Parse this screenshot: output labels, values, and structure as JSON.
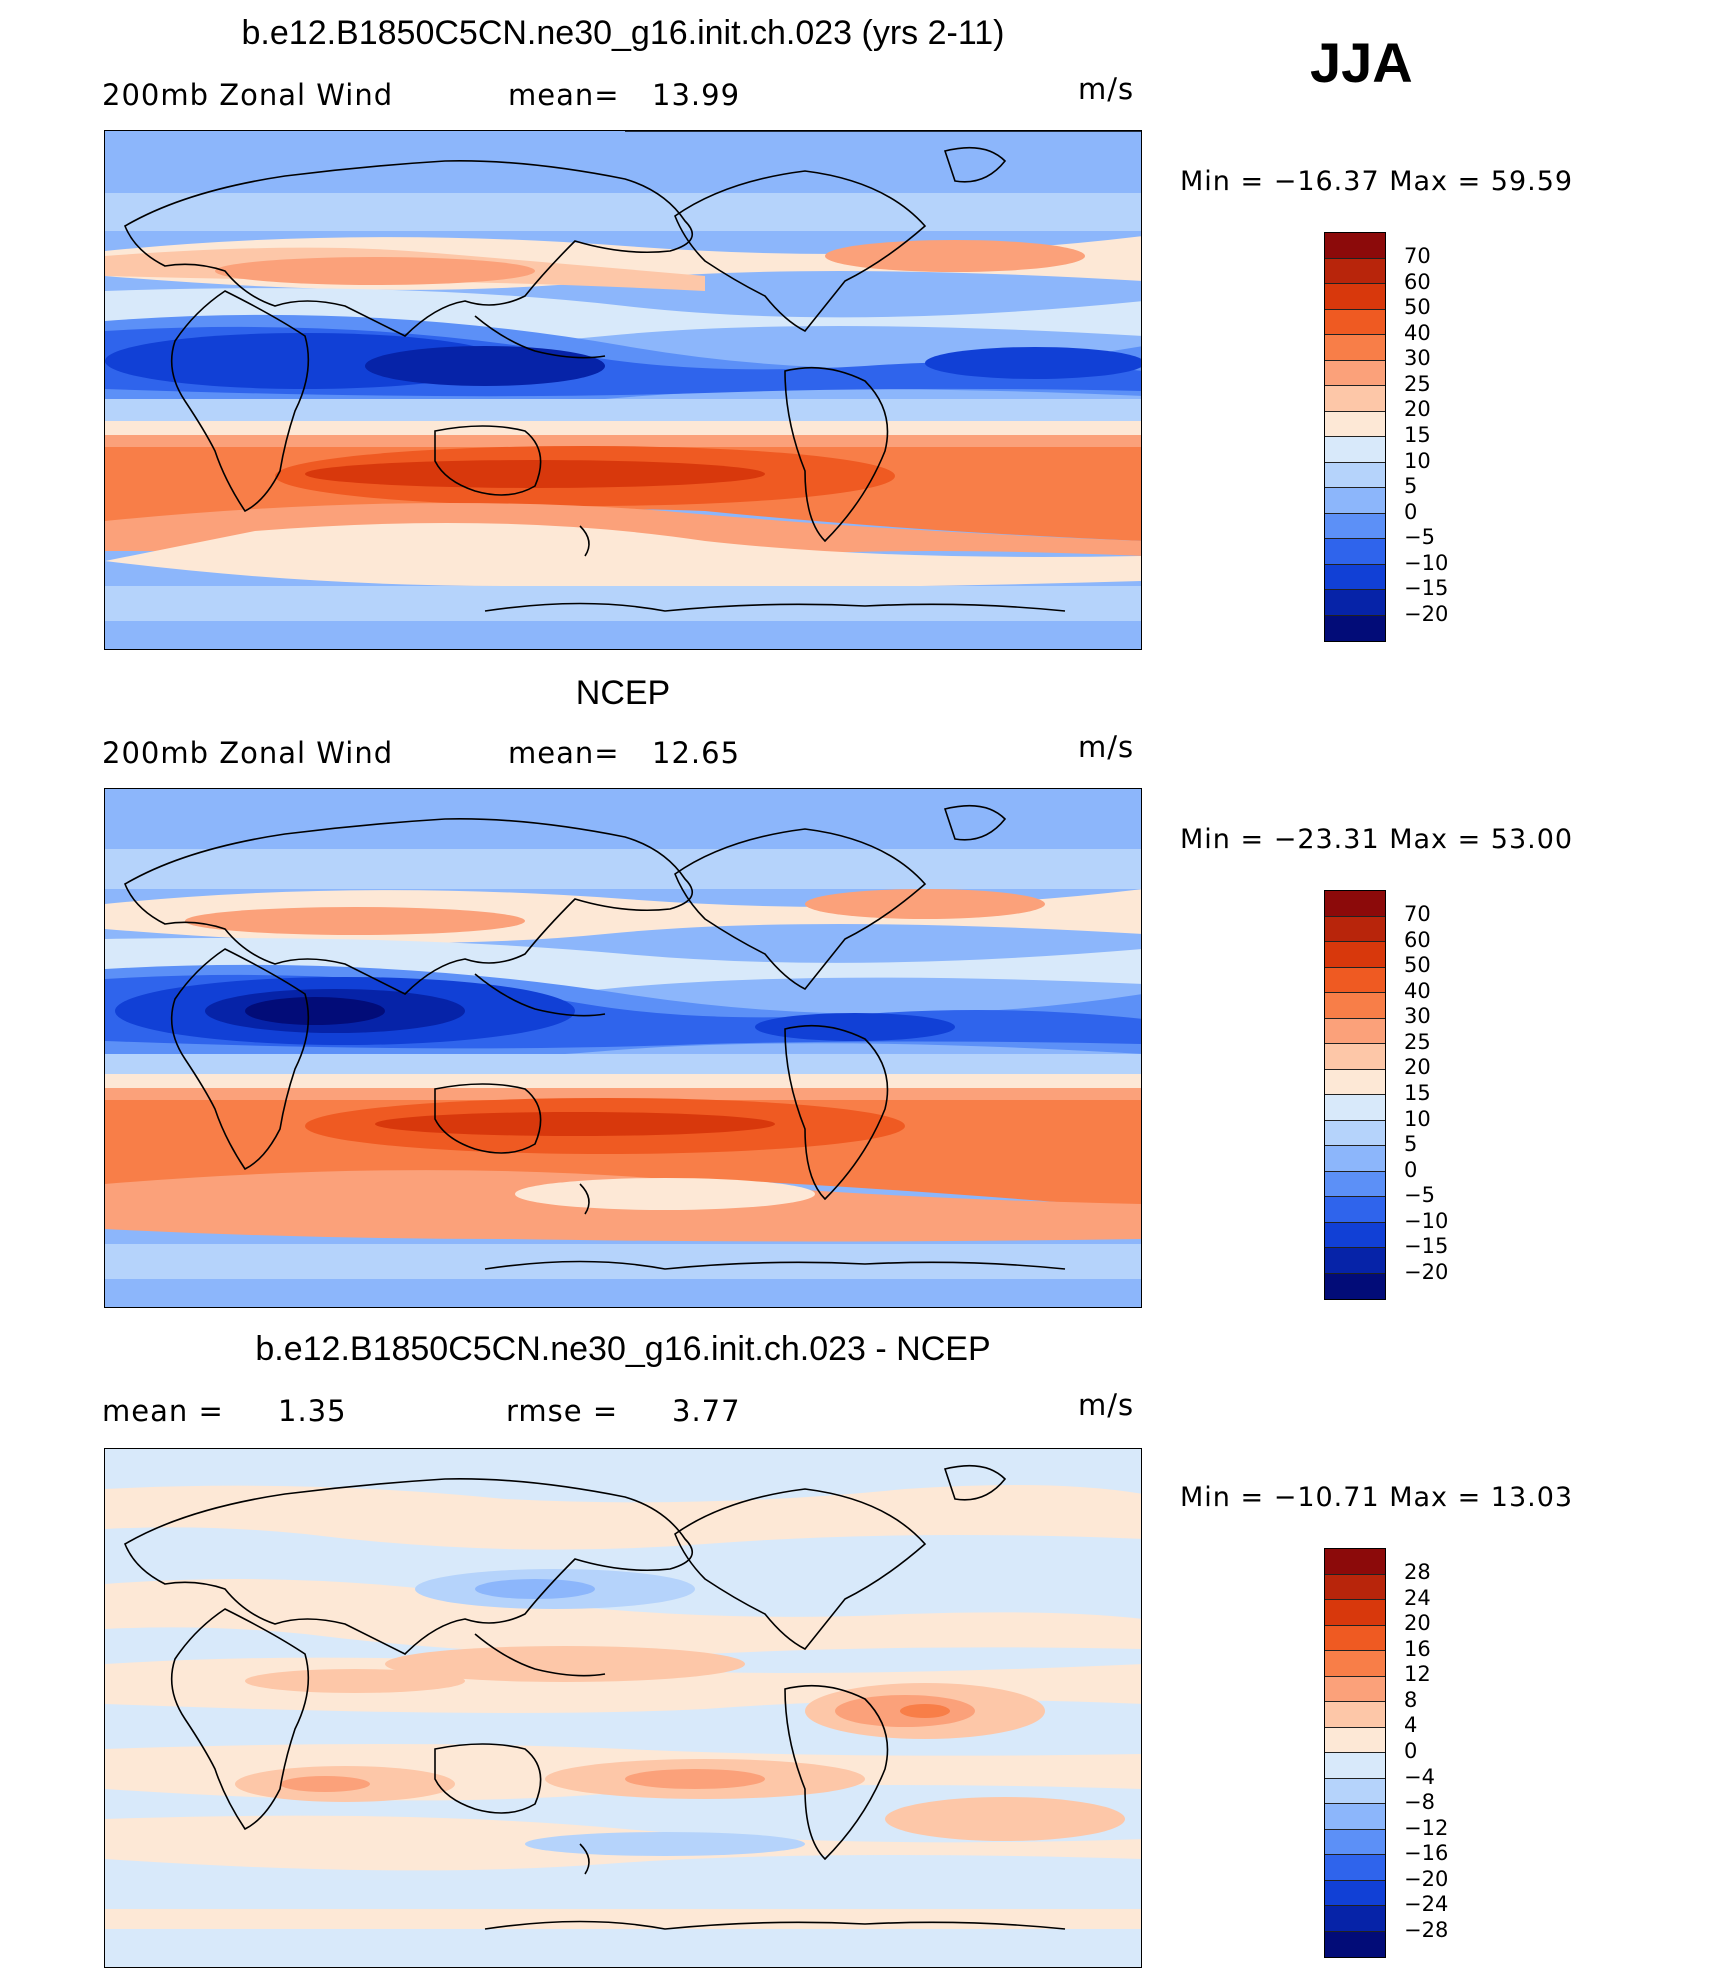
{
  "season": "JJA",
  "panels": [
    {
      "title": "b.e12.B1850C5CN.ne30_g16.init.ch.023 (yrs 2-11)",
      "left_label": "200mb Zonal Wind",
      "stat_label": "mean=",
      "stat_value": "13.99",
      "units": "m/s",
      "minmax": "Min = −16.37 Max = 59.59"
    },
    {
      "title": "NCEP",
      "left_label": "200mb Zonal Wind",
      "stat_label": "mean=",
      "stat_value": "12.65",
      "units": "m/s",
      "minmax": "Min = −23.31 Max = 53.00"
    },
    {
      "title": "b.e12.B1850C5CN.ne30_g16.init.ch.023 - NCEP",
      "left_label": "mean =",
      "left_value": "1.35",
      "stat_label": "rmse =",
      "stat_value": "3.77",
      "units": "m/s",
      "minmax": "Min = −10.71 Max = 13.03"
    }
  ],
  "colorbars": [
    {
      "labels": [
        "70",
        "60",
        "50",
        "40",
        "30",
        "25",
        "20",
        "15",
        "10",
        "5",
        "0",
        "−5",
        "−10",
        "−15",
        "−20"
      ],
      "colors": [
        "#8c0a0a",
        "#b8250b",
        "#d8380c",
        "#ef5a22",
        "#f87e48",
        "#fba17a",
        "#fdc7a8",
        "#fde8d6",
        "#d8e9fa",
        "#b5d3fb",
        "#8cb6fb",
        "#5c90f7",
        "#2f64ec",
        "#1140d6",
        "#0623a8",
        "#020c78"
      ]
    },
    {
      "labels": [
        "70",
        "60",
        "50",
        "40",
        "30",
        "25",
        "20",
        "15",
        "10",
        "5",
        "0",
        "−5",
        "−10",
        "−15",
        "−20"
      ],
      "colors": [
        "#8c0a0a",
        "#b8250b",
        "#d8380c",
        "#ef5a22",
        "#f87e48",
        "#fba17a",
        "#fdc7a8",
        "#fde8d6",
        "#d8e9fa",
        "#b5d3fb",
        "#8cb6fb",
        "#5c90f7",
        "#2f64ec",
        "#1140d6",
        "#0623a8",
        "#020c78"
      ]
    },
    {
      "labels": [
        "28",
        "24",
        "20",
        "16",
        "12",
        "8",
        "4",
        "0",
        "−4",
        "−8",
        "−12",
        "−16",
        "−20",
        "−24",
        "−28"
      ],
      "colors": [
        "#8c0a0a",
        "#b8250b",
        "#d8380c",
        "#ef5a22",
        "#f87e48",
        "#fba17a",
        "#fdc7a8",
        "#fde8d6",
        "#d8e9fa",
        "#b5d3fb",
        "#8cb6fb",
        "#5c90f7",
        "#2f64ec",
        "#1140d6",
        "#0623a8",
        "#020c78"
      ]
    }
  ]
}
